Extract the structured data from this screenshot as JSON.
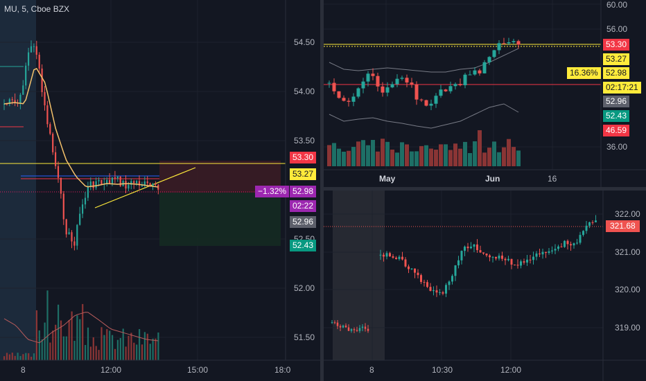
{
  "left_chart": {
    "title": "MU, 5, Cboe BZX",
    "price_axis": [
      "54.50",
      "54.00",
      "53.50",
      "52.50",
      "52.00",
      "51.50"
    ],
    "time_axis": [
      "8",
      "12:00",
      "15:00",
      "18:0"
    ],
    "tags": {
      "red_price": "53.30",
      "yellow_price": "53.27",
      "pct_change": "−1.32%",
      "last_price": "52.98",
      "countdown": "02:22",
      "gray_price": "52.96",
      "green_price": "52.43"
    }
  },
  "top_right_chart": {
    "price_axis": [
      "60.00",
      "56.00",
      "36.00"
    ],
    "time_axis": [
      "May",
      "Jun",
      "16"
    ],
    "tags": {
      "red_price": "53.30",
      "yellow_price": "53.27",
      "pct_change": "16.36%",
      "last_price": "52.98",
      "countdown": "02:17:21",
      "gray_price": "52.96",
      "green_price": "52.43",
      "red_low": "46.59"
    }
  },
  "bottom_right_chart": {
    "price_axis": [
      "322.00",
      "321.00",
      "320.00",
      "319.00"
    ],
    "time_axis": [
      "8",
      "10:30",
      "12:00"
    ],
    "last_price_tag": "321.68"
  },
  "colors": {
    "background": "#131722",
    "up": "#26a69a",
    "down": "#ef5350",
    "yellow": "#ffeb3b",
    "red_tag": "#f23645",
    "green_tag": "#089981",
    "purple_tag": "#9c27b0"
  }
}
